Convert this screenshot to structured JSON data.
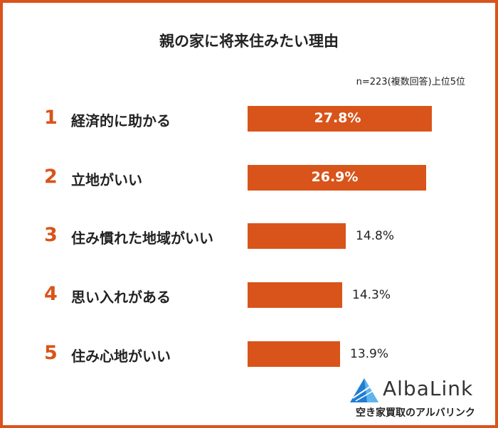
{
  "chart_data": {
    "type": "bar",
    "orientation": "horizontal",
    "title": "親の家に将来住みたい理由",
    "note": "n=223(複数回答)上位5位",
    "ranks": [
      "1",
      "2",
      "3",
      "4",
      "5"
    ],
    "categories": [
      "経済的に助かる",
      "立地がいい",
      "住み慣れた地域がいい",
      "思い入れがある",
      "住み心地がいい"
    ],
    "values": [
      27.8,
      26.9,
      14.8,
      14.3,
      13.9
    ],
    "value_labels": [
      "27.8%",
      "26.9%",
      "14.8%",
      "14.3%",
      "13.9%"
    ],
    "bar_color": "#d9541a",
    "grid": false
  },
  "logo": {
    "name": "AlbaLink",
    "tagline": "空き家買取のアルバリンク"
  },
  "colors": {
    "accent": "#d9541a",
    "logo_blue": "#1f7ed0"
  }
}
